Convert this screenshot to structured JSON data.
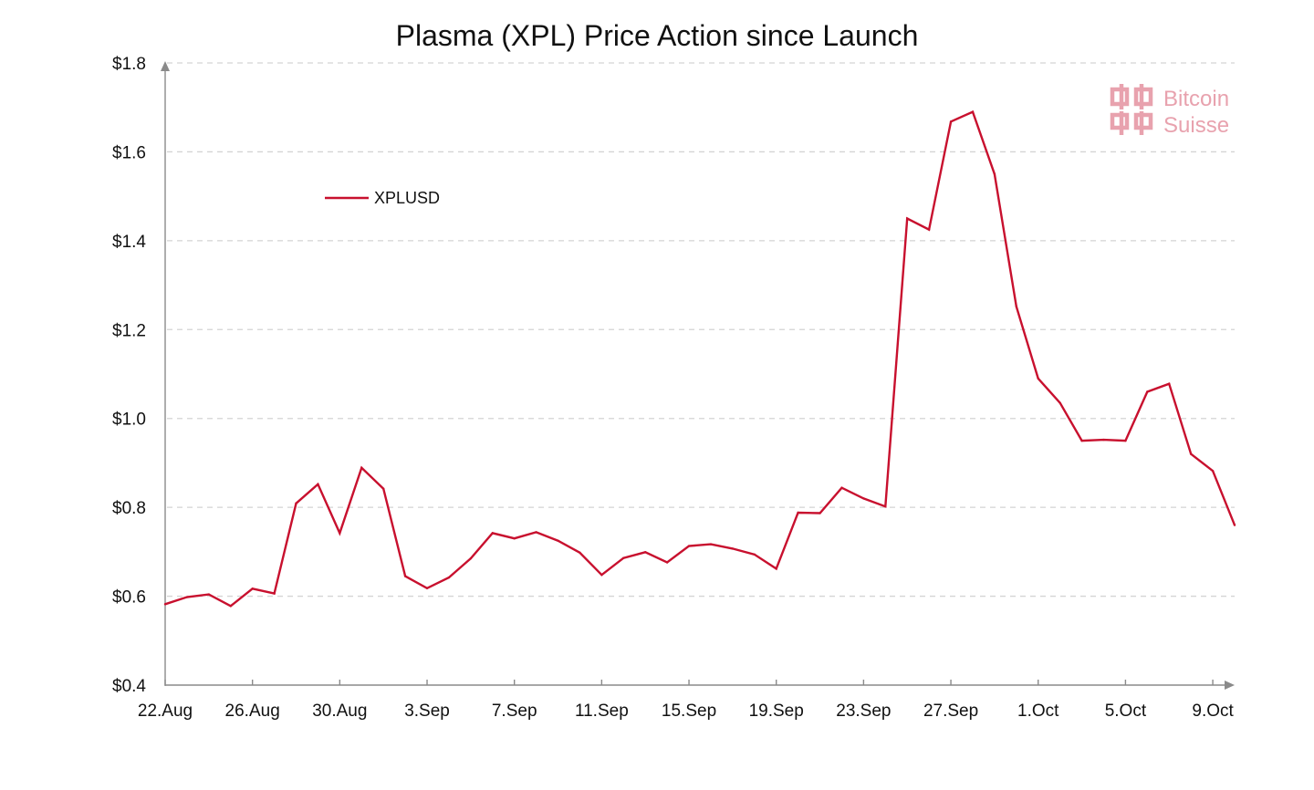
{
  "chart_data": {
    "type": "line",
    "title": "Plasma (XPL) Price Action since Launch",
    "xlabel": "",
    "ylabel": "",
    "ylim": [
      0.4,
      1.8
    ],
    "y_ticks": [
      0.4,
      0.6,
      0.8,
      1.0,
      1.2,
      1.4,
      1.6,
      1.8
    ],
    "y_tick_labels": [
      "$0.4",
      "$0.6",
      "$0.8",
      "$1.0",
      "$1.2",
      "$1.4",
      "$1.6",
      "$1.8"
    ],
    "x_start": "22.Aug",
    "x_tick_labels": [
      "22.Aug",
      "26.Aug",
      "30.Aug",
      "3.Sep",
      "7.Sep",
      "11.Sep",
      "15.Sep",
      "19.Sep",
      "23.Sep",
      "27.Sep",
      "1.Oct",
      "5.Oct",
      "9.Oct"
    ],
    "grid": "horizontal dashed",
    "legend_position": "top-left",
    "series": [
      {
        "name": "XPLUSD",
        "color": "#C8102E",
        "x": [
          "22.Aug",
          "23.Aug",
          "24.Aug",
          "25.Aug",
          "26.Aug",
          "27.Aug",
          "28.Aug",
          "29.Aug",
          "30.Aug",
          "31.Aug",
          "1.Sep",
          "2.Sep",
          "3.Sep",
          "4.Sep",
          "5.Sep",
          "6.Sep",
          "7.Sep",
          "8.Sep",
          "9.Sep",
          "10.Sep",
          "11.Sep",
          "12.Sep",
          "13.Sep",
          "14.Sep",
          "15.Sep",
          "16.Sep",
          "17.Sep",
          "18.Sep",
          "19.Sep",
          "20.Sep",
          "21.Sep",
          "22.Sep",
          "23.Sep",
          "24.Sep",
          "25.Sep",
          "26.Sep",
          "27.Sep",
          "28.Sep",
          "29.Sep",
          "30.Sep",
          "1.Oct",
          "2.Oct",
          "3.Oct",
          "4.Oct",
          "5.Oct",
          "6.Oct",
          "7.Oct",
          "8.Oct",
          "9.Oct",
          "10.Oct"
        ],
        "values": [
          0.582,
          0.598,
          0.604,
          0.578,
          0.617,
          0.606,
          0.809,
          0.852,
          0.742,
          0.889,
          0.842,
          0.645,
          0.618,
          0.642,
          0.685,
          0.742,
          0.73,
          0.744,
          0.725,
          0.698,
          0.648,
          0.686,
          0.699,
          0.676,
          0.713,
          0.717,
          0.707,
          0.694,
          0.662,
          0.788,
          0.787,
          0.844,
          0.82,
          0.802,
          1.45,
          1.425,
          1.668,
          1.69,
          1.55,
          1.252,
          1.09,
          1.035,
          0.95,
          0.952,
          0.95,
          1.06,
          1.078,
          0.92,
          0.882,
          0.76
        ]
      }
    ]
  },
  "watermark": {
    "line1": "Bitcoin",
    "line2": "Suisse",
    "color": "#E8A2AE",
    "icon": "bitcoin-suisse-logo-icon"
  }
}
